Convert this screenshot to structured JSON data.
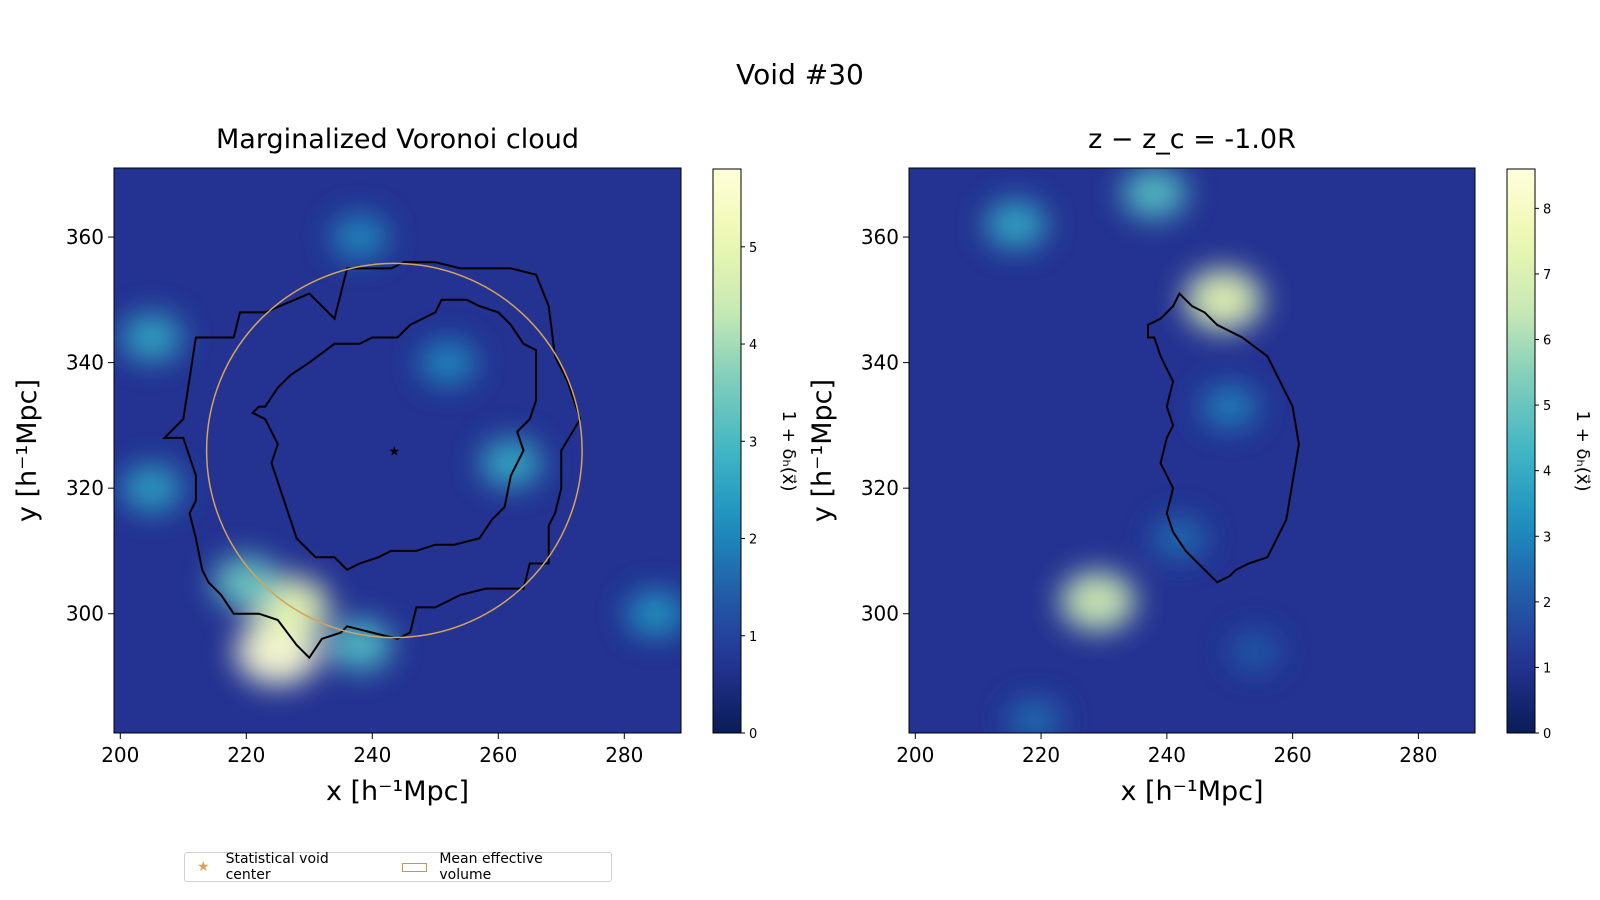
{
  "figure": {
    "suptitle": "Void #30"
  },
  "legend": {
    "items": [
      {
        "label": "Statistical void center",
        "marker": "star",
        "color": "#d4a35c"
      },
      {
        "label": "Mean effective volume",
        "marker": "rectangle-outline",
        "color": "#c99a3b"
      }
    ],
    "placement": "lower-left, below plots"
  },
  "colors": {
    "colormap": [
      "#081d58",
      "#253494",
      "#225ea8",
      "#1d91c0",
      "#41b6c4",
      "#7fcdbb",
      "#c7e9b4",
      "#edf8b1",
      "#ffffd9"
    ],
    "contour": "#000000",
    "circle": "#d4a35c"
  },
  "chart_data": [
    {
      "type": "heatmap",
      "title": "Marginalized Voronoi cloud",
      "xlabel": "x [h⁻¹Mpc]",
      "ylabel": "y [h⁻¹Mpc]",
      "xlim": [
        199,
        289
      ],
      "ylim": [
        281,
        371
      ],
      "xticks": [
        200,
        220,
        240,
        260,
        280
      ],
      "yticks": [
        300,
        320,
        340,
        360
      ],
      "colorbar": {
        "label": "1 + δₕ(x⃗)",
        "range": [
          0,
          5.8
        ],
        "ticks": [
          0,
          1,
          2,
          3,
          4,
          5
        ]
      },
      "void_center": {
        "x": 243.5,
        "y": 326.0
      },
      "effective_radius_circle": {
        "center": [
          243.5,
          326.0
        ],
        "radius": 29.8
      },
      "contour_outer": [
        [
          207,
          328
        ],
        [
          210,
          331
        ],
        [
          212,
          344
        ],
        [
          218,
          344
        ],
        [
          219,
          348
        ],
        [
          223,
          348
        ],
        [
          230,
          351
        ],
        [
          234,
          347
        ],
        [
          236,
          355
        ],
        [
          243,
          355
        ],
        [
          245,
          356
        ],
        [
          250,
          356
        ],
        [
          254,
          355
        ],
        [
          258,
          355
        ],
        [
          262,
          355
        ],
        [
          266,
          354
        ],
        [
          268,
          349
        ],
        [
          269,
          341
        ],
        [
          271,
          337
        ],
        [
          273,
          331
        ],
        [
          270,
          326
        ],
        [
          270,
          320
        ],
        [
          269,
          316
        ],
        [
          268,
          314
        ],
        [
          268,
          308
        ],
        [
          265,
          308
        ],
        [
          264,
          304
        ],
        [
          258,
          304
        ],
        [
          254,
          303
        ],
        [
          250,
          301
        ],
        [
          247,
          301
        ],
        [
          246,
          297
        ],
        [
          244,
          296
        ],
        [
          240,
          297
        ],
        [
          236,
          298
        ],
        [
          235,
          297
        ],
        [
          232,
          296
        ],
        [
          230,
          293
        ],
        [
          228,
          295
        ],
        [
          225,
          299
        ],
        [
          222,
          300
        ],
        [
          218,
          300
        ],
        [
          216,
          303
        ],
        [
          214,
          305
        ],
        [
          213,
          307
        ],
        [
          212,
          312
        ],
        [
          211,
          316
        ],
        [
          212,
          318
        ],
        [
          212,
          322
        ],
        [
          211,
          325
        ],
        [
          210,
          328
        ],
        [
          207,
          328
        ]
      ],
      "contour_inner": [
        [
          221,
          332
        ],
        [
          222,
          333
        ],
        [
          223,
          333
        ],
        [
          225,
          336
        ],
        [
          227,
          338
        ],
        [
          230,
          340
        ],
        [
          234,
          343
        ],
        [
          238,
          343
        ],
        [
          240,
          344
        ],
        [
          244,
          344
        ],
        [
          246,
          346
        ],
        [
          250,
          348
        ],
        [
          251,
          350
        ],
        [
          255,
          350
        ],
        [
          257,
          349
        ],
        [
          260,
          348
        ],
        [
          262,
          346
        ],
        [
          264,
          343
        ],
        [
          266,
          342
        ],
        [
          266,
          338
        ],
        [
          266,
          334
        ],
        [
          265,
          331
        ],
        [
          263,
          329
        ],
        [
          264,
          326
        ],
        [
          262,
          322
        ],
        [
          261,
          317
        ],
        [
          259,
          315
        ],
        [
          257,
          312
        ],
        [
          253,
          311
        ],
        [
          250,
          311
        ],
        [
          247,
          310
        ],
        [
          243,
          310
        ],
        [
          241,
          309
        ],
        [
          238,
          308
        ],
        [
          236,
          307
        ],
        [
          234,
          309
        ],
        [
          231,
          309
        ],
        [
          228,
          312
        ],
        [
          227,
          315
        ],
        [
          226,
          318
        ],
        [
          225,
          321
        ],
        [
          224,
          324
        ],
        [
          225,
          327
        ],
        [
          223,
          331
        ],
        [
          221,
          332
        ]
      ],
      "high_density_regions": [
        {
          "x": 225,
          "y": 294,
          "value": 5.6
        },
        {
          "x": 227,
          "y": 301,
          "value": 4.8
        },
        {
          "x": 220,
          "y": 305,
          "value": 3.3
        },
        {
          "x": 238,
          "y": 295,
          "value": 3.0
        },
        {
          "x": 205,
          "y": 320,
          "value": 2.4
        },
        {
          "x": 262,
          "y": 324,
          "value": 2.6
        },
        {
          "x": 252,
          "y": 340,
          "value": 2.0
        },
        {
          "x": 238,
          "y": 360,
          "value": 2.0
        },
        {
          "x": 205,
          "y": 344,
          "value": 2.5
        },
        {
          "x": 285,
          "y": 300,
          "value": 2.2
        }
      ]
    },
    {
      "type": "heatmap",
      "title": "z − z_c = -1.0R",
      "xlabel": "x [h⁻¹Mpc]",
      "ylabel": "y [h⁻¹Mpc]",
      "xlim": [
        199,
        289
      ],
      "ylim": [
        281,
        371
      ],
      "xticks": [
        200,
        220,
        240,
        260,
        280
      ],
      "yticks": [
        300,
        320,
        340,
        360
      ],
      "colorbar": {
        "label": "1 + δₕ(x⃗)",
        "range": [
          0,
          8.6
        ],
        "ticks": [
          0,
          1,
          2,
          3,
          4,
          5,
          6,
          7,
          8
        ]
      },
      "contour": [
        [
          242,
          351
        ],
        [
          244,
          349
        ],
        [
          246,
          348
        ],
        [
          248,
          346
        ],
        [
          252,
          344
        ],
        [
          256,
          341
        ],
        [
          258,
          337
        ],
        [
          260,
          333
        ],
        [
          261,
          327
        ],
        [
          260,
          321
        ],
        [
          259,
          315
        ],
        [
          257,
          311
        ],
        [
          256,
          309
        ],
        [
          253,
          308
        ],
        [
          251,
          307
        ],
        [
          250,
          306
        ],
        [
          248,
          305
        ],
        [
          245,
          308
        ],
        [
          243,
          310
        ],
        [
          241,
          313
        ],
        [
          240,
          316
        ],
        [
          241,
          320
        ],
        [
          239,
          324
        ],
        [
          240,
          328
        ],
        [
          241,
          330
        ],
        [
          240,
          333
        ],
        [
          241,
          337
        ],
        [
          240,
          339
        ],
        [
          239,
          341
        ],
        [
          238,
          344
        ],
        [
          237,
          344
        ],
        [
          237,
          346
        ],
        [
          239,
          347
        ],
        [
          241,
          349
        ],
        [
          242,
          351
        ]
      ],
      "high_density_regions": [
        {
          "x": 249,
          "y": 350,
          "value": 7.0
        },
        {
          "x": 229,
          "y": 302,
          "value": 6.5
        },
        {
          "x": 238,
          "y": 367,
          "value": 4.5
        },
        {
          "x": 216,
          "y": 362,
          "value": 3.8
        },
        {
          "x": 250,
          "y": 333,
          "value": 2.8
        },
        {
          "x": 242,
          "y": 312,
          "value": 2.4
        },
        {
          "x": 254,
          "y": 294,
          "value": 2.0
        },
        {
          "x": 219,
          "y": 283,
          "value": 2.4
        }
      ]
    }
  ]
}
